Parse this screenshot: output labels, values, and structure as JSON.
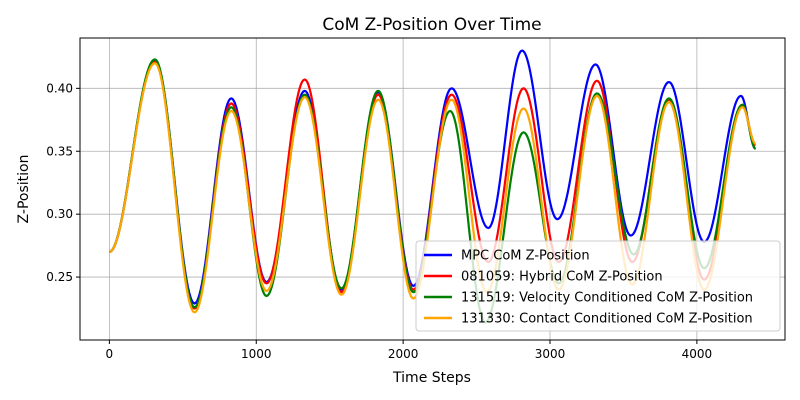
{
  "chart_data": {
    "type": "line",
    "title": "CoM Z-Position Over Time",
    "xlabel": "Time Steps",
    "ylabel": "Z-Position",
    "xlim": [
      -200,
      4600
    ],
    "ylim": [
      0.2,
      0.44
    ],
    "xticks": [
      0,
      1000,
      2000,
      3000,
      4000
    ],
    "yticks": [
      0.25,
      0.3,
      0.35,
      0.4
    ],
    "ytick_labels": [
      "0.25",
      "0.30",
      "0.35",
      "0.40"
    ],
    "grid": true,
    "legend_position": "lower-right",
    "series": [
      {
        "name": "MPC CoM Z-Position",
        "color": "#0000ff",
        "points": [
          [
            0,
            0.27
          ],
          [
            310,
            0.422
          ],
          [
            580,
            0.229
          ],
          [
            830,
            0.392
          ],
          [
            1070,
            0.246
          ],
          [
            1330,
            0.398
          ],
          [
            1580,
            0.24
          ],
          [
            1830,
            0.397
          ],
          [
            2070,
            0.243
          ],
          [
            2330,
            0.4
          ],
          [
            2580,
            0.289
          ],
          [
            2810,
            0.43
          ],
          [
            3050,
            0.296
          ],
          [
            3310,
            0.419
          ],
          [
            3550,
            0.283
          ],
          [
            3810,
            0.405
          ],
          [
            4050,
            0.278
          ],
          [
            4300,
            0.394
          ],
          [
            4400,
            0.352
          ]
        ]
      },
      {
        "name": "081059: Hybrid CoM Z-Position",
        "color": "#ff0000",
        "points": [
          [
            0,
            0.27
          ],
          [
            310,
            0.421
          ],
          [
            580,
            0.225
          ],
          [
            830,
            0.388
          ],
          [
            1070,
            0.245
          ],
          [
            1330,
            0.407
          ],
          [
            1580,
            0.238
          ],
          [
            1830,
            0.395
          ],
          [
            2070,
            0.24
          ],
          [
            2330,
            0.395
          ],
          [
            2580,
            0.262
          ],
          [
            2820,
            0.4
          ],
          [
            3060,
            0.262
          ],
          [
            3320,
            0.406
          ],
          [
            3560,
            0.262
          ],
          [
            3810,
            0.391
          ],
          [
            4050,
            0.248
          ],
          [
            4310,
            0.386
          ],
          [
            4400,
            0.355
          ]
        ]
      },
      {
        "name": "131519: Velocity Conditioned CoM Z-Position",
        "color": "#008000",
        "points": [
          [
            0,
            0.27
          ],
          [
            310,
            0.423
          ],
          [
            580,
            0.226
          ],
          [
            830,
            0.385
          ],
          [
            1070,
            0.235
          ],
          [
            1330,
            0.395
          ],
          [
            1580,
            0.241
          ],
          [
            1830,
            0.398
          ],
          [
            2070,
            0.238
          ],
          [
            2320,
            0.382
          ],
          [
            2560,
            0.214
          ],
          [
            2820,
            0.365
          ],
          [
            3060,
            0.245
          ],
          [
            3320,
            0.396
          ],
          [
            3570,
            0.268
          ],
          [
            3810,
            0.392
          ],
          [
            4050,
            0.257
          ],
          [
            4310,
            0.387
          ],
          [
            4400,
            0.352
          ]
        ]
      },
      {
        "name": "131330: Contact Conditioned CoM Z-Position",
        "color": "#ffa500",
        "points": [
          [
            0,
            0.27
          ],
          [
            310,
            0.42
          ],
          [
            580,
            0.222
          ],
          [
            830,
            0.382
          ],
          [
            1070,
            0.239
          ],
          [
            1330,
            0.393
          ],
          [
            1580,
            0.236
          ],
          [
            1830,
            0.391
          ],
          [
            2070,
            0.233
          ],
          [
            2330,
            0.391
          ],
          [
            2570,
            0.238
          ],
          [
            2820,
            0.384
          ],
          [
            3060,
            0.24
          ],
          [
            3320,
            0.394
          ],
          [
            3560,
            0.244
          ],
          [
            3810,
            0.389
          ],
          [
            4050,
            0.24
          ],
          [
            4310,
            0.385
          ],
          [
            4400,
            0.356
          ]
        ]
      }
    ]
  }
}
